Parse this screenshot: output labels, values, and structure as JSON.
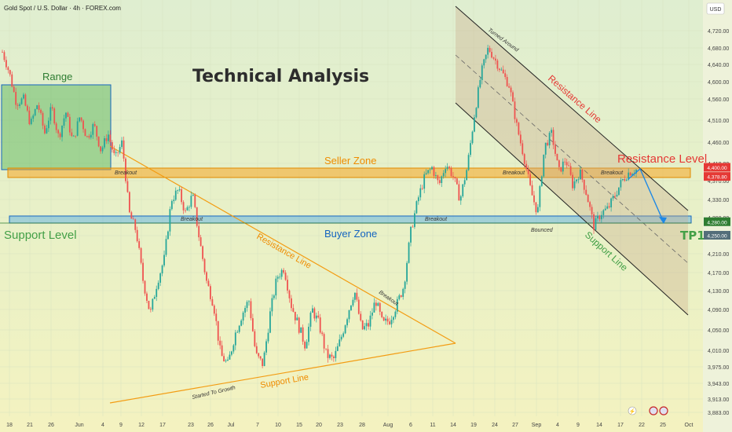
{
  "header": {
    "symbol_title": "Gold Spot / U.S. Dollar · 4h · FOREX.com",
    "currency_button": "USD"
  },
  "chart_data": {
    "type": "candlestick",
    "title": "Technical Analysis",
    "x_ticks": [
      "18",
      "21",
      "26",
      "Jun",
      "4",
      "9",
      "12",
      "17",
      "23",
      "26",
      "Jul",
      "7",
      "10",
      "15",
      "20",
      "23",
      "28",
      "Aug",
      "6",
      "11",
      "14",
      "19",
      "24",
      "27",
      "Sep",
      "4",
      "9",
      "14",
      "17",
      "22",
      "25",
      "Oct"
    ],
    "y_ticks": [
      4720,
      4680,
      4640,
      4600,
      4560,
      4510,
      4460,
      4410,
      4370,
      4330,
      4290,
      4250,
      4210,
      4170,
      4130,
      4090,
      4050,
      4010,
      3975,
      3943,
      3913,
      3883
    ],
    "y_tick_labels": [
      "4,720.00",
      "4,680.00",
      "4,640.00",
      "4,600.00",
      "4,560.00",
      "4,510.00",
      "4,460.00",
      "4,410.00",
      "4,370.00",
      "4,330.00",
      "4,290.00",
      "4,250.00",
      "4,210.00",
      "4,170.00",
      "4,130.00",
      "4,090.00",
      "4,050.00",
      "4,010.00",
      "3,975.00",
      "3,943.00",
      "3,913.00",
      "3,883.00"
    ],
    "ylim": [
      3883,
      4720
    ],
    "price_markers": [
      {
        "label": "4,400.00",
        "value": 4400,
        "color": "#e53935"
      },
      {
        "label": "4,378.80",
        "value": 4378.8,
        "color": "#e53935"
      },
      {
        "label": "4,280.00",
        "value": 4280,
        "color": "#2e7d32"
      },
      {
        "label": "4,250.00",
        "value": 4250,
        "color": "#546e7a"
      }
    ],
    "candle_path": [
      4670,
      4620,
      4550,
      4560,
      4500,
      4550,
      4480,
      4540,
      4470,
      4530,
      4460,
      4520,
      4470,
      4500,
      4440,
      4480,
      4420,
      4460,
      4300,
      4260,
      4150,
      4080,
      4150,
      4200,
      4330,
      4350,
      4300,
      4340,
      4240,
      4150,
      4100,
      4000,
      3980,
      4040,
      4080,
      4110,
      4000,
      3980,
      4080,
      4160,
      4180,
      4100,
      4060,
      4020,
      4090,
      4060,
      4000,
      3990,
      4030,
      4080,
      4130,
      4050,
      4060,
      4110,
      4060,
      4070,
      4100,
      4140,
      4260,
      4330,
      4380,
      4400,
      4360,
      4410,
      4380,
      4330,
      4400,
      4520,
      4620,
      4680,
      4650,
      4620,
      4590,
      4500,
      4430,
      4350,
      4300,
      4450,
      4480,
      4390,
      4420,
      4360,
      4390,
      4340,
      4270,
      4300,
      4310,
      4340,
      4370,
      4390,
      4395
    ],
    "zones": [
      {
        "name": "Seller Zone",
        "from": 4372,
        "to": 4398
      },
      {
        "name": "Buyer Zone",
        "from": 4275,
        "to": 4290
      },
      {
        "name": "Range",
        "from": 4395,
        "to": 4600
      }
    ],
    "annotations": {
      "range": "Range",
      "seller_zone": "Seller Zone",
      "buyer_zone": "Buyer Zone",
      "support_level": "Support Level",
      "resistance_level": "Resistance Level",
      "tp1": "TP1",
      "resistance_line_left": "Resistance Line",
      "support_line_left": "Support Line",
      "resistance_line_right": "Resistance Line",
      "support_line_right": "Support Line",
      "breakout_1": "Breakout",
      "breakout_2": "Breakout",
      "breakout_3": "Breakout",
      "breakout_4": "Breakout",
      "breakout_5": "Breakout",
      "breakout_6": "Breakout",
      "bounced": "Bounced",
      "turned_around": "Turned Around",
      "started_to_growth": "Started To Growth"
    },
    "colors": {
      "up": "#26a69a",
      "down": "#ef5350",
      "seller_zone": "#f5a623",
      "buyer_zone": "#2196f3",
      "triangle": "#f39c12",
      "channel": "#222222",
      "range_box": "#4caf50",
      "arrow": "#1e88e5"
    }
  }
}
